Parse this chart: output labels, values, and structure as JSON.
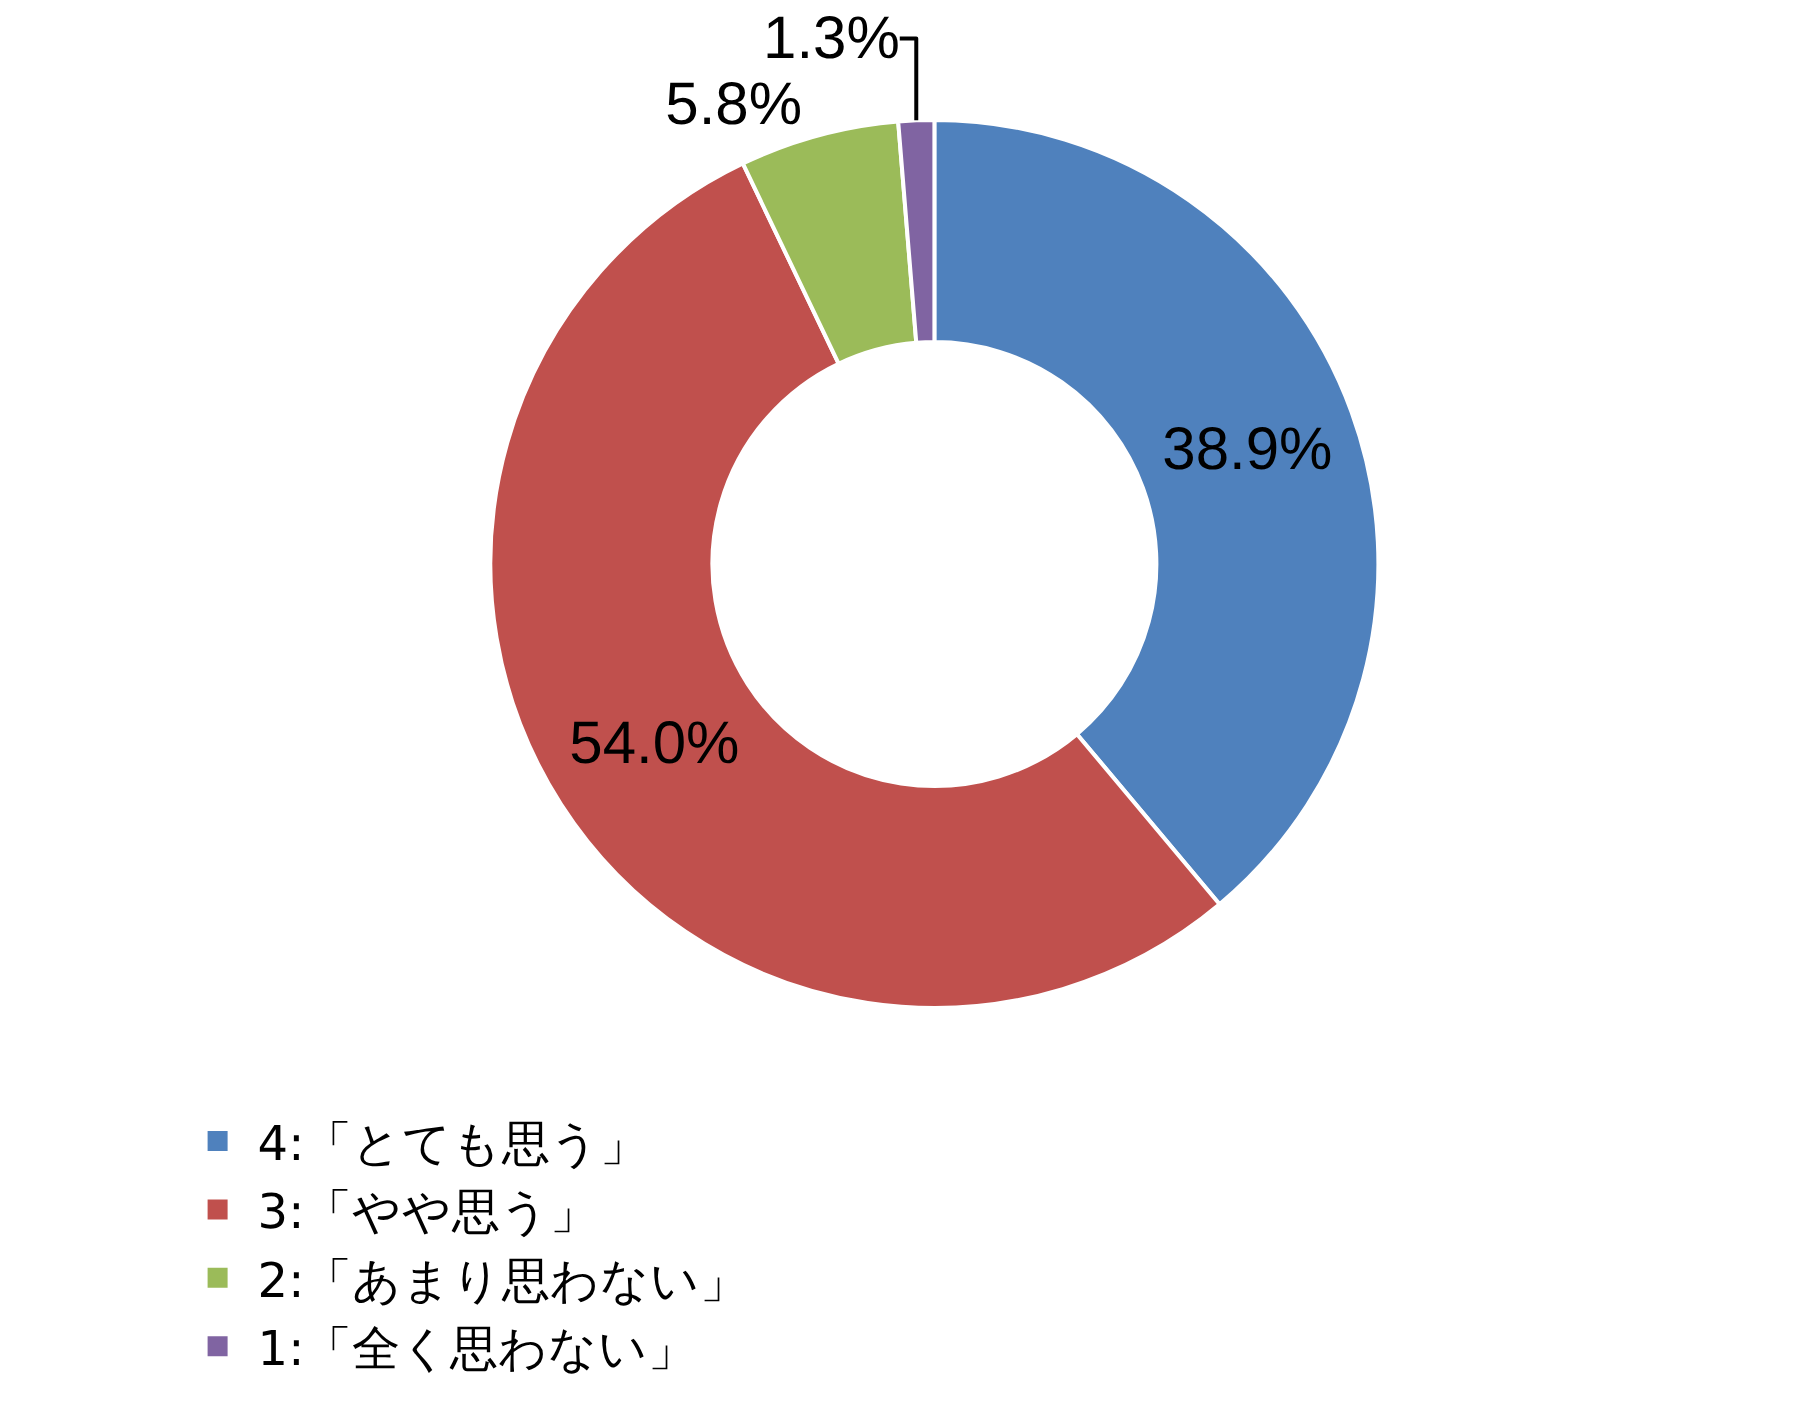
{
  "chart_data": {
    "type": "donut",
    "categories": [
      "4:「とても思う」",
      "3:「やや思う」",
      "2:「あまり思わない」",
      "1:「全く思わない」"
    ],
    "values": [
      38.9,
      54.0,
      5.8,
      1.3
    ],
    "colors": [
      "#4f81bd",
      "#c0504d",
      "#9bbb59",
      "#8064a2"
    ],
    "value_labels": [
      "38.9%",
      "54.0%",
      "5.8%",
      "1.3%"
    ],
    "legend": "bottom"
  }
}
